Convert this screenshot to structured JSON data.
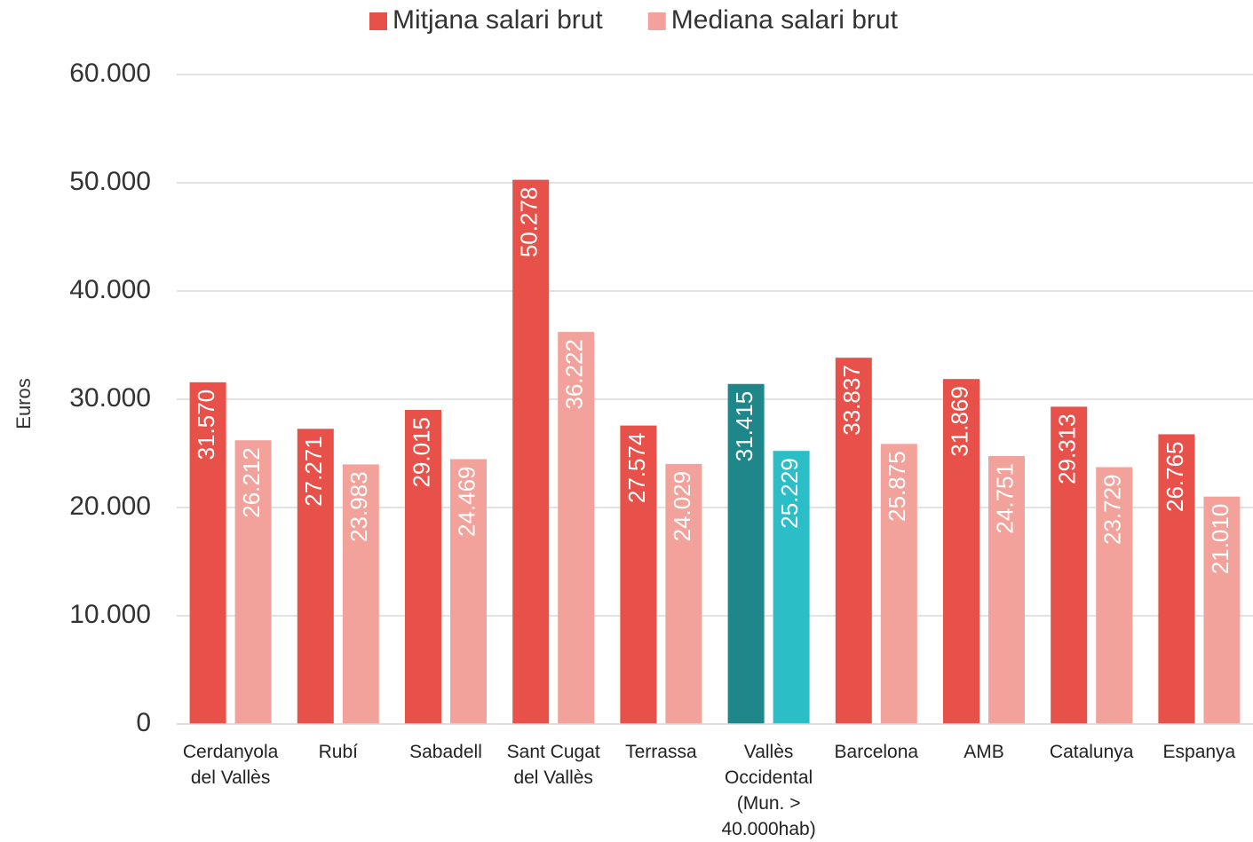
{
  "chart_data": {
    "type": "bar",
    "y_label": "Euros",
    "categories": [
      "Cerdanyola del Vallès",
      "Rubí",
      "Sabadell",
      "Sant Cugat del Vallès",
      "Terrassa",
      "Vallès Occidental (Mun. > 40.000hab)",
      "Barcelona",
      "AMB",
      "Catalunya",
      "Espanya"
    ],
    "series": [
      {
        "name": "Mitjana salari brut",
        "color": "#e8504a",
        "colors": [
          "#e8504a",
          "#e8504a",
          "#e8504a",
          "#e8504a",
          "#e8504a",
          "#1f878a",
          "#e8504a",
          "#e8504a",
          "#e8504a",
          "#e8504a"
        ],
        "values": [
          31570,
          27271,
          29015,
          50278,
          27574,
          31415,
          33837,
          31869,
          29313,
          26765
        ],
        "value_labels": [
          "31.570",
          "27.271",
          "29.015",
          "50.278",
          "27.574",
          "31.415",
          "33.837",
          "31.869",
          "29.313",
          "26.765"
        ]
      },
      {
        "name": "Mediana salari brut",
        "color": "#f3a19b",
        "colors": [
          "#f3a19b",
          "#f3a19b",
          "#f3a19b",
          "#f3a19b",
          "#f3a19b",
          "#2bbec6",
          "#f3a19b",
          "#f3a19b",
          "#f3a19b",
          "#f3a19b"
        ],
        "values": [
          26212,
          23983,
          24469,
          36222,
          24029,
          25229,
          25875,
          24751,
          23729,
          21010
        ],
        "value_labels": [
          "26.212",
          "23.983",
          "24.469",
          "36.222",
          "24.029",
          "25.229",
          "25.875",
          "24.751",
          "23.729",
          "21.010"
        ]
      }
    ],
    "ylim": [
      0,
      60000
    ],
    "yticks": [
      0,
      {
        "value": 10000,
        "label": "10.000"
      },
      {
        "value": 20000,
        "label": "20.000"
      },
      {
        "value": 30000,
        "label": "30.000"
      },
      {
        "value": 40000,
        "label": "40.000"
      },
      {
        "value": 50000,
        "label": "50.000"
      },
      {
        "value": 60000,
        "label": "60.000"
      }
    ],
    "grid": true,
    "legend": "top"
  }
}
